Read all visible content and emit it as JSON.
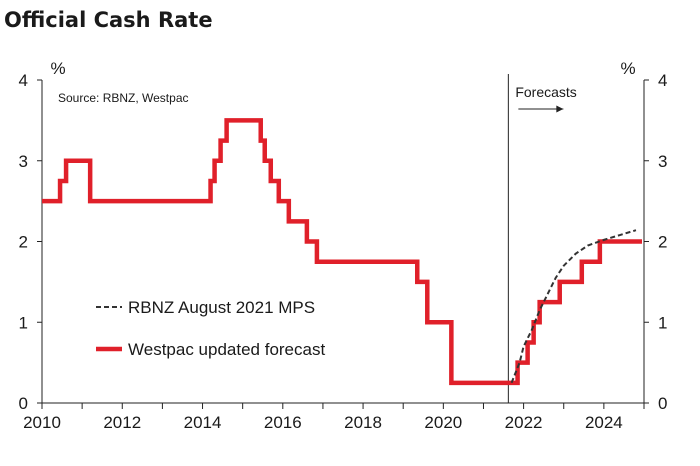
{
  "title": "Official Cash Rate",
  "source": "Source: RBNZ, Westpac",
  "forecasts_label": "Forecasts",
  "chart_data": {
    "type": "line",
    "title": "Official Cash Rate",
    "xlabel": "",
    "ylabel": "%",
    "ylabel_right": "%",
    "xlim": [
      2010,
      2025
    ],
    "ylim": [
      0,
      4
    ],
    "x_ticks": [
      "2010",
      "2012",
      "2014",
      "2016",
      "2018",
      "2020",
      "2022",
      "2024"
    ],
    "y_ticks": [
      "0",
      "1",
      "2",
      "3",
      "4"
    ],
    "forecast_start": 2021.62,
    "grid": false,
    "legend_position": "bottom-left",
    "series": [
      {
        "name": "Westpac updated forecast",
        "color": "#e0202a",
        "style": "step-solid",
        "points": [
          [
            2010.0,
            2.5
          ],
          [
            2010.45,
            2.75
          ],
          [
            2010.6,
            3.0
          ],
          [
            2011.2,
            2.5
          ],
          [
            2014.2,
            2.75
          ],
          [
            2014.3,
            3.0
          ],
          [
            2014.45,
            3.25
          ],
          [
            2014.6,
            3.5
          ],
          [
            2015.45,
            3.25
          ],
          [
            2015.55,
            3.0
          ],
          [
            2015.7,
            2.75
          ],
          [
            2015.9,
            2.5
          ],
          [
            2016.15,
            2.25
          ],
          [
            2016.6,
            2.0
          ],
          [
            2016.85,
            1.75
          ],
          [
            2019.35,
            1.5
          ],
          [
            2019.6,
            1.0
          ],
          [
            2020.2,
            0.25
          ],
          [
            2021.65,
            0.25
          ],
          [
            2021.85,
            0.5
          ],
          [
            2022.1,
            0.75
          ],
          [
            2022.25,
            1.0
          ],
          [
            2022.4,
            1.25
          ],
          [
            2022.9,
            1.5
          ],
          [
            2023.45,
            1.75
          ],
          [
            2023.9,
            2.0
          ],
          [
            2024.95,
            2.0
          ]
        ]
      },
      {
        "name": "RBNZ August 2021 MPS",
        "color": "#333333",
        "style": "dashed",
        "points": [
          [
            2021.7,
            0.25
          ],
          [
            2021.9,
            0.5
          ],
          [
            2022.0,
            0.7
          ],
          [
            2022.2,
            0.9
          ],
          [
            2022.4,
            1.15
          ],
          [
            2022.6,
            1.35
          ],
          [
            2022.8,
            1.55
          ],
          [
            2023.0,
            1.7
          ],
          [
            2023.3,
            1.85
          ],
          [
            2023.6,
            1.95
          ],
          [
            2024.0,
            2.02
          ],
          [
            2024.4,
            2.08
          ],
          [
            2024.8,
            2.14
          ]
        ]
      }
    ]
  }
}
